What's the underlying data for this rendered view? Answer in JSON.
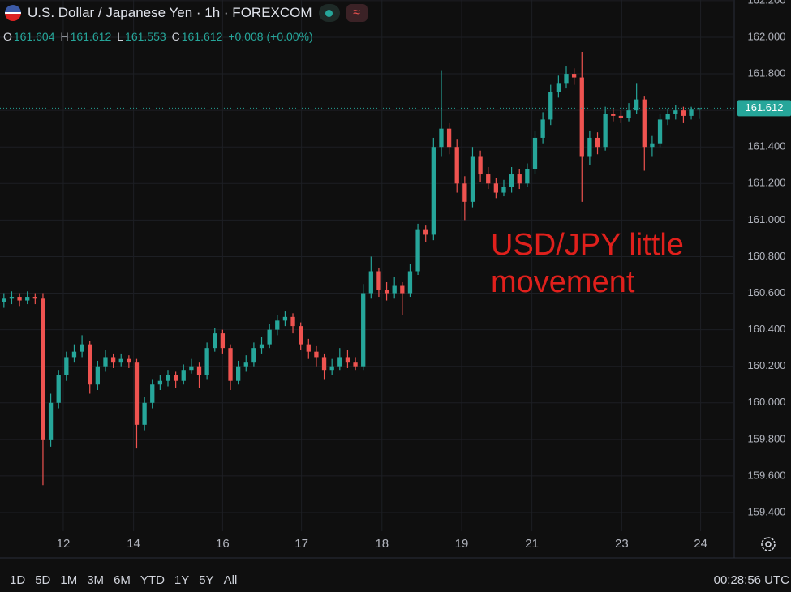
{
  "chart_data": {
    "type": "candlestick",
    "title": "U.S. Dollar / Japanese Yen · 1h · FOREXCOM",
    "ohlc_labels": [
      "O",
      "H",
      "L",
      "C"
    ],
    "change_label": "+0.008 (+0.00%)",
    "annotation": "USD/JPY little movement",
    "up_color": "#26a69a",
    "down_color": "#ef5350",
    "grid": true,
    "last_price_line": true,
    "ylim": [
      159.298,
      162.204
    ],
    "yticks": [
      {
        "value": 159.4,
        "label": "159.400"
      },
      {
        "value": 159.6,
        "label": "159.600"
      },
      {
        "value": 159.8,
        "label": "159.800"
      },
      {
        "value": 160.0,
        "label": "160.000"
      },
      {
        "value": 160.2,
        "label": "160.200"
      },
      {
        "value": 160.4,
        "label": "160.400"
      },
      {
        "value": 160.6,
        "label": "160.600"
      },
      {
        "value": 160.8,
        "label": "160.800"
      },
      {
        "value": 161.0,
        "label": "161.000"
      },
      {
        "value": 161.2,
        "label": "161.200"
      },
      {
        "value": 161.4,
        "label": "161.400"
      },
      {
        "value": 161.6,
        "label": "161.600"
      },
      {
        "value": 161.8,
        "label": "161.800"
      },
      {
        "value": 162.0,
        "label": "162.000"
      },
      {
        "value": 162.2,
        "label": "162.200"
      }
    ],
    "xlim": [
      -0.5,
      93.5
    ],
    "xticks": [
      {
        "value": 7.6,
        "label": "12"
      },
      {
        "value": 16.6,
        "label": "14"
      },
      {
        "value": 28,
        "label": "16"
      },
      {
        "value": 38.1,
        "label": "17"
      },
      {
        "value": 48.4,
        "label": "18"
      },
      {
        "value": 58.6,
        "label": "19"
      },
      {
        "value": 67.6,
        "label": "21"
      },
      {
        "value": 79.1,
        "label": "23"
      },
      {
        "value": 89.2,
        "label": "24"
      }
    ],
    "ohlc": [
      [
        160.55,
        160.6,
        160.52,
        160.57
      ],
      [
        160.57,
        160.61,
        160.54,
        160.58
      ],
      [
        160.58,
        160.6,
        160.53,
        160.56
      ],
      [
        160.56,
        160.61,
        160.54,
        160.58
      ],
      [
        160.58,
        160.6,
        160.54,
        160.57
      ],
      [
        160.57,
        160.6,
        159.55,
        159.8
      ],
      [
        159.8,
        160.05,
        159.76,
        160.0
      ],
      [
        160.0,
        160.18,
        159.97,
        160.15
      ],
      [
        160.15,
        160.28,
        160.12,
        160.25
      ],
      [
        160.25,
        160.32,
        160.22,
        160.28
      ],
      [
        160.28,
        160.37,
        160.25,
        160.32
      ],
      [
        160.32,
        160.34,
        160.05,
        160.1
      ],
      [
        160.1,
        160.23,
        160.07,
        160.2
      ],
      [
        160.2,
        160.29,
        160.17,
        160.25
      ],
      [
        160.25,
        160.27,
        160.19,
        160.22
      ],
      [
        160.22,
        160.27,
        160.2,
        160.24
      ],
      [
        160.24,
        160.26,
        160.19,
        160.22
      ],
      [
        160.22,
        160.24,
        159.75,
        159.88
      ],
      [
        159.88,
        160.03,
        159.85,
        160.0
      ],
      [
        160.0,
        160.13,
        159.97,
        160.1
      ],
      [
        160.1,
        160.15,
        160.07,
        160.12
      ],
      [
        160.12,
        160.18,
        160.09,
        160.15
      ],
      [
        160.15,
        160.17,
        160.08,
        160.12
      ],
      [
        160.12,
        160.21,
        160.1,
        160.18
      ],
      [
        160.18,
        160.24,
        160.16,
        160.2
      ],
      [
        160.2,
        160.22,
        160.08,
        160.15
      ],
      [
        160.15,
        160.33,
        160.13,
        160.3
      ],
      [
        160.3,
        160.41,
        160.28,
        160.38
      ],
      [
        160.38,
        160.4,
        160.27,
        160.3
      ],
      [
        160.3,
        160.32,
        160.07,
        160.12
      ],
      [
        160.12,
        160.23,
        160.1,
        160.2
      ],
      [
        160.2,
        160.26,
        160.17,
        160.22
      ],
      [
        160.22,
        160.33,
        160.2,
        160.3
      ],
      [
        160.3,
        160.36,
        160.27,
        160.32
      ],
      [
        160.32,
        160.43,
        160.3,
        160.4
      ],
      [
        160.4,
        160.48,
        160.37,
        160.45
      ],
      [
        160.45,
        160.5,
        160.42,
        160.47
      ],
      [
        160.47,
        160.49,
        160.38,
        160.42
      ],
      [
        160.42,
        160.44,
        160.29,
        160.32
      ],
      [
        160.32,
        160.35,
        160.24,
        160.28
      ],
      [
        160.28,
        160.31,
        160.2,
        160.25
      ],
      [
        160.25,
        160.27,
        160.13,
        160.18
      ],
      [
        160.18,
        160.24,
        160.15,
        160.2
      ],
      [
        160.2,
        160.3,
        160.18,
        160.25
      ],
      [
        160.25,
        160.29,
        160.19,
        160.22
      ],
      [
        160.22,
        160.25,
        160.18,
        160.2
      ],
      [
        160.2,
        160.65,
        160.18,
        160.6
      ],
      [
        160.6,
        160.8,
        160.57,
        160.72
      ],
      [
        160.72,
        160.74,
        160.58,
        160.62
      ],
      [
        160.62,
        160.66,
        160.56,
        160.6
      ],
      [
        160.6,
        160.69,
        160.57,
        160.64
      ],
      [
        160.64,
        160.66,
        160.48,
        160.6
      ],
      [
        160.6,
        160.76,
        160.58,
        160.72
      ],
      [
        160.72,
        160.98,
        160.7,
        160.95
      ],
      [
        160.95,
        160.97,
        160.88,
        160.92
      ],
      [
        160.92,
        161.45,
        160.89,
        161.4
      ],
      [
        161.4,
        161.82,
        161.35,
        161.5
      ],
      [
        161.5,
        161.53,
        161.36,
        161.4
      ],
      [
        161.4,
        161.44,
        161.15,
        161.2
      ],
      [
        161.2,
        161.24,
        161.0,
        161.1
      ],
      [
        161.1,
        161.4,
        161.07,
        161.35
      ],
      [
        161.35,
        161.38,
        161.21,
        161.25
      ],
      [
        161.25,
        161.29,
        161.17,
        161.2
      ],
      [
        161.2,
        161.23,
        161.12,
        161.15
      ],
      [
        161.15,
        161.22,
        161.13,
        161.18
      ],
      [
        161.18,
        161.29,
        161.15,
        161.25
      ],
      [
        161.25,
        161.28,
        161.17,
        161.2
      ],
      [
        161.2,
        161.31,
        161.18,
        161.28
      ],
      [
        161.28,
        161.49,
        161.25,
        161.45
      ],
      [
        161.45,
        161.59,
        161.42,
        161.55
      ],
      [
        161.55,
        161.74,
        161.52,
        161.7
      ],
      [
        161.7,
        161.79,
        161.67,
        161.75
      ],
      [
        161.75,
        161.84,
        161.72,
        161.8
      ],
      [
        161.8,
        161.83,
        161.74,
        161.78
      ],
      [
        161.78,
        161.92,
        161.1,
        161.35
      ],
      [
        161.35,
        161.49,
        161.3,
        161.45
      ],
      [
        161.45,
        161.48,
        161.36,
        161.4
      ],
      [
        161.4,
        161.62,
        161.38,
        161.58
      ],
      [
        161.58,
        161.61,
        161.54,
        161.57
      ],
      [
        161.57,
        161.6,
        161.53,
        161.56
      ],
      [
        161.56,
        161.64,
        161.54,
        161.6
      ],
      [
        161.6,
        161.75,
        161.58,
        161.66
      ],
      [
        161.66,
        161.68,
        161.27,
        161.4
      ],
      [
        161.4,
        161.46,
        161.35,
        161.42
      ],
      [
        161.42,
        161.58,
        161.4,
        161.55
      ],
      [
        161.55,
        161.61,
        161.52,
        161.58
      ],
      [
        161.58,
        161.63,
        161.55,
        161.6
      ],
      [
        161.6,
        161.62,
        161.53,
        161.57
      ],
      [
        161.57,
        161.62,
        161.55,
        161.604
      ],
      [
        161.604,
        161.612,
        161.553,
        161.612
      ]
    ],
    "range_buttons": [
      "1D",
      "5D",
      "1M",
      "3M",
      "6M",
      "YTD",
      "1Y",
      "5Y",
      "All"
    ],
    "clock": "00:28:56 UTC"
  }
}
